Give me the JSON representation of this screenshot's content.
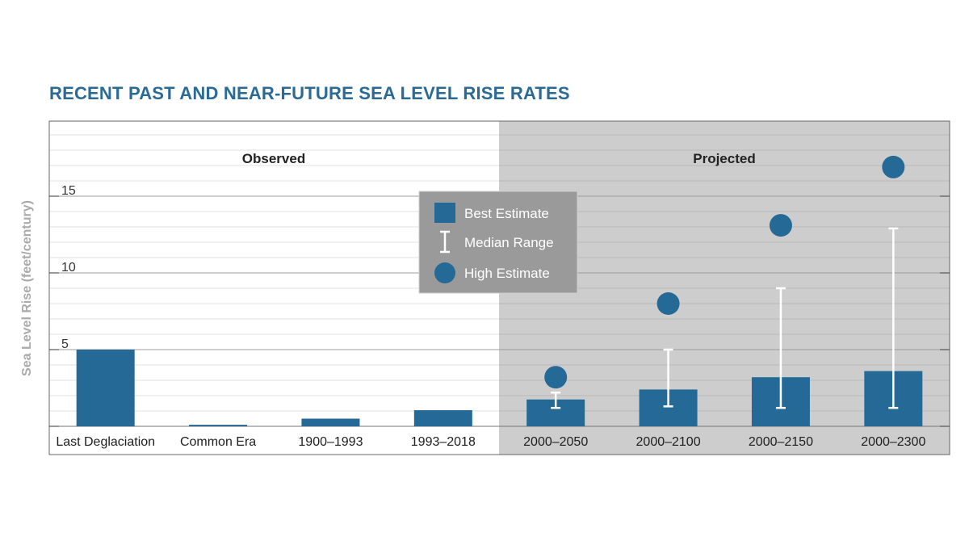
{
  "chart_data": {
    "type": "bar",
    "title": "RECENT PAST AND NEAR-FUTURE SEA LEVEL RISE RATES",
    "ylabel": "Sea Level Rise (feet/century)",
    "xlabel": "",
    "ylim": [
      0,
      19.5
    ],
    "yticks": [
      5,
      10,
      15
    ],
    "gridlines": true,
    "sections": [
      {
        "label": "Observed",
        "categories": [
          "Last Deglaciation",
          "Common Era",
          "1900–1993",
          "1993–2018"
        ]
      },
      {
        "label": "Projected",
        "categories": [
          "2000–2050",
          "2000–2100",
          "2000–2150",
          "2000–2300"
        ]
      }
    ],
    "categories": [
      "Last Deglaciation",
      "Common Era",
      "1900–1993",
      "1993–2018",
      "2000–2050",
      "2000–2100",
      "2000–2150",
      "2000–2300"
    ],
    "series": [
      {
        "name": "Best Estimate",
        "kind": "bar",
        "values": [
          5.0,
          0.1,
          0.5,
          1.05,
          1.75,
          2.4,
          3.2,
          3.6
        ]
      },
      {
        "name": "Median Range",
        "kind": "errorbar",
        "low": [
          null,
          null,
          null,
          null,
          1.2,
          1.3,
          1.2,
          1.2
        ],
        "high": [
          null,
          null,
          null,
          null,
          2.2,
          5.0,
          9.0,
          12.9
        ]
      },
      {
        "name": "High Estimate",
        "kind": "point",
        "values": [
          null,
          null,
          null,
          null,
          3.2,
          8.0,
          13.1,
          16.9
        ]
      }
    ],
    "legend": {
      "placement": "center",
      "entries": [
        "Best Estimate",
        "Median Range",
        "High Estimate"
      ]
    },
    "colors": {
      "bar": "#256a96",
      "projected_bg": "#cdcdcd",
      "legend_bg": "#9a9a9a",
      "title": "#2a6a96",
      "errorbar": "#ffffff"
    }
  }
}
